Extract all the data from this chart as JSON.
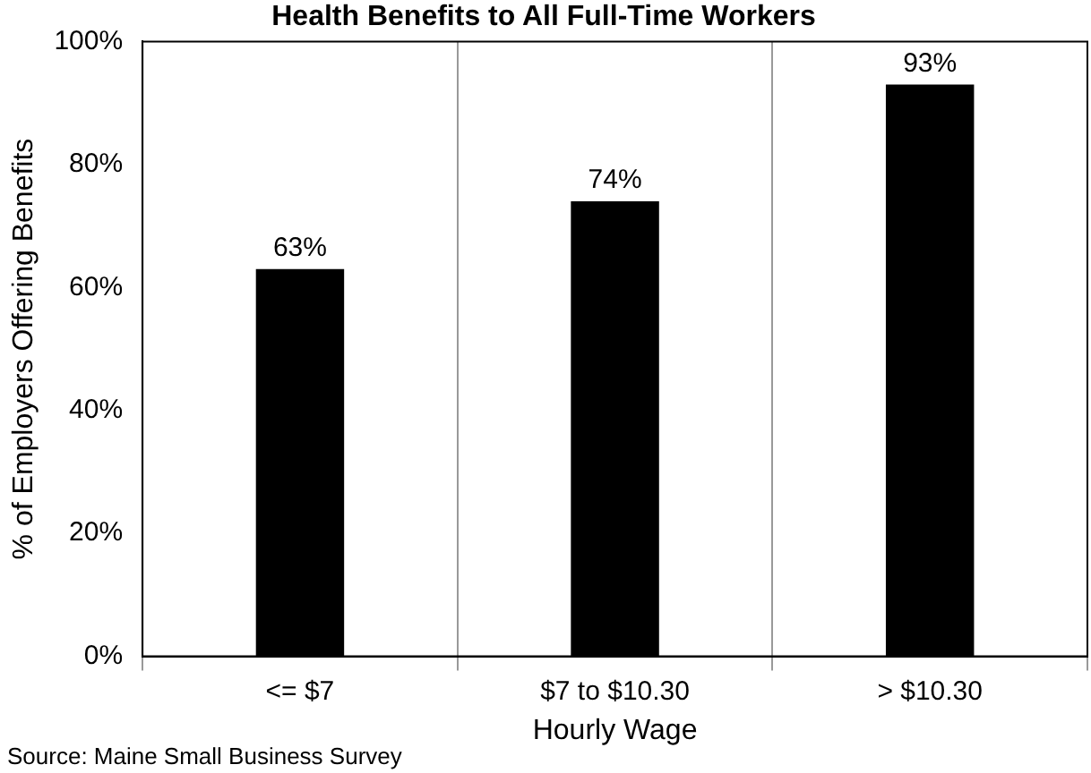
{
  "chart_data": {
    "type": "bar",
    "title": "Health Benefits to All Full-Time Workers",
    "xlabel": "Hourly Wage",
    "ylabel": "% of Employers Offering Benefits",
    "categories": [
      "<= $7",
      "$7 to $10.30",
      "> $10.30"
    ],
    "values": [
      63,
      74,
      93
    ],
    "color": "#000000",
    "value_labels": [
      "63%",
      "74%",
      "93%"
    ],
    "ylim": [
      0,
      100
    ],
    "yticks": [
      {
        "value": 0,
        "label": "0%"
      },
      {
        "value": 20,
        "label": "20%"
      },
      {
        "value": 40,
        "label": "40%"
      },
      {
        "value": 60,
        "label": "60%"
      },
      {
        "value": 80,
        "label": "80%"
      },
      {
        "value": 100,
        "label": "100%"
      }
    ],
    "grid": "x",
    "legend": false,
    "annotations": [
      "Source: Maine Small Business Survey"
    ]
  }
}
